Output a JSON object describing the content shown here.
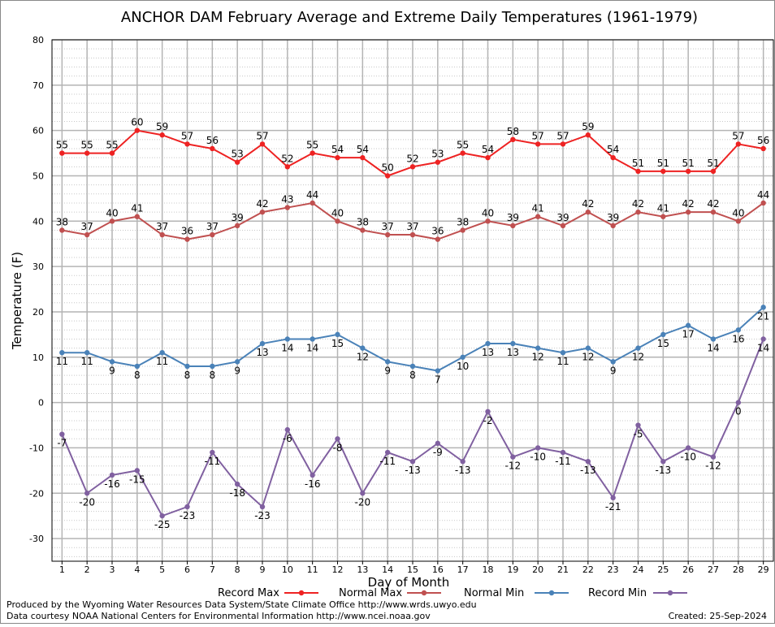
{
  "chart_data": {
    "type": "line",
    "title": "ANCHOR DAM February Average and Extreme Daily Temperatures (1961-1979)",
    "xlabel": "Day of Month",
    "ylabel": "Temperature (F)",
    "x": [
      1,
      2,
      3,
      4,
      5,
      6,
      7,
      8,
      9,
      10,
      11,
      12,
      13,
      14,
      15,
      16,
      17,
      18,
      19,
      20,
      21,
      22,
      23,
      24,
      25,
      26,
      27,
      28,
      29
    ],
    "xlim": [
      0.6,
      29.4
    ],
    "ylim": [
      -35,
      80
    ],
    "yticks": [
      -30,
      -20,
      -10,
      0,
      10,
      20,
      30,
      40,
      50,
      60,
      70,
      80
    ],
    "grid": true,
    "legend_position": "bottom",
    "series": [
      {
        "name": "Record Max",
        "color": "#ee2222",
        "values": [
          55,
          55,
          55,
          60,
          59,
          57,
          56,
          53,
          57,
          52,
          55,
          54,
          54,
          50,
          52,
          53,
          55,
          54,
          58,
          57,
          57,
          59,
          54,
          51,
          51,
          51,
          51,
          57,
          56
        ]
      },
      {
        "name": "Normal Max",
        "color": "#c05050",
        "values": [
          38,
          37,
          40,
          41,
          37,
          36,
          37,
          39,
          42,
          43,
          44,
          40,
          38,
          37,
          37,
          36,
          38,
          40,
          39,
          41,
          39,
          42,
          39,
          42,
          41,
          42,
          42,
          40,
          44
        ]
      },
      {
        "name": "Normal Min",
        "color": "#4a82b8",
        "values": [
          11,
          11,
          9,
          8,
          11,
          8,
          8,
          9,
          13,
          14,
          14,
          15,
          12,
          9,
          8,
          7,
          10,
          13,
          13,
          12,
          11,
          12,
          9,
          12,
          15,
          17,
          14,
          16,
          21
        ]
      },
      {
        "name": "Record Min",
        "color": "#8060a0",
        "values": [
          -7,
          -20,
          -16,
          -15,
          -25,
          -23,
          -11,
          -18,
          -23,
          -6,
          -16,
          -8,
          -20,
          -11,
          -13,
          -9,
          -13,
          -2,
          -12,
          -10,
          -11,
          -13,
          -21,
          -5,
          -13,
          -10,
          -12,
          0,
          14
        ]
      }
    ]
  },
  "footer": {
    "credit_line1": "Produced by the Wyoming Water Resources Data System/State Climate Office http://www.wrds.uwyo.edu",
    "credit_line2": "Data courtesy NOAA National Centers for Environmental Information http://www.ncei.noaa.gov",
    "created": "Created:  25-Sep-2024"
  }
}
